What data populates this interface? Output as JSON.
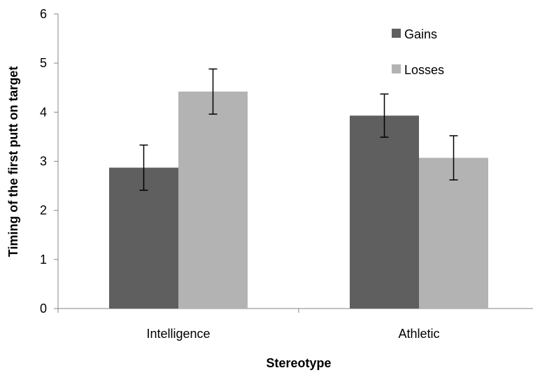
{
  "chart_data": {
    "type": "bar",
    "xlabel": "Stereotype",
    "ylabel": "Timing of the first putt on target",
    "categories": [
      "Intelligence",
      "Athletic"
    ],
    "ylim": [
      0,
      6
    ],
    "yticks": [
      0,
      1,
      2,
      3,
      4,
      5,
      6
    ],
    "grid": false,
    "legend_position": "top-right",
    "series": [
      {
        "name": "Gains",
        "color": "#5f5f5f",
        "values": [
          2.87,
          3.93
        ],
        "error": [
          0.46,
          0.44
        ]
      },
      {
        "name": "Losses",
        "color": "#b3b3b3",
        "values": [
          4.42,
          3.07
        ],
        "error": [
          0.46,
          0.45
        ]
      }
    ]
  }
}
